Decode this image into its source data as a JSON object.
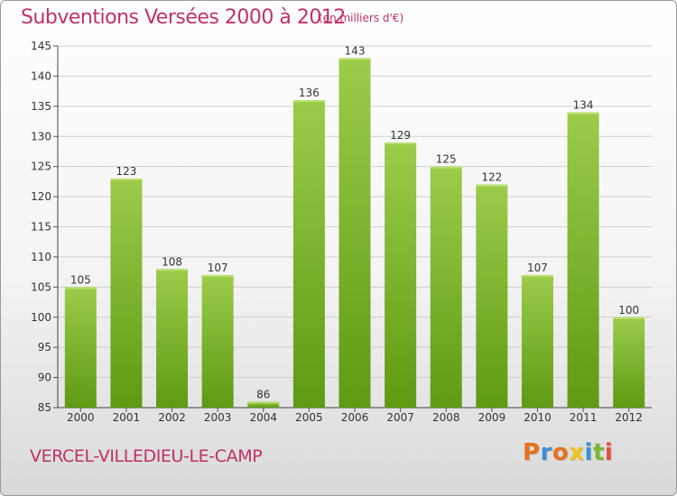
{
  "header": {
    "title": "Subventions Versées 2000 à 2012",
    "unit": "(en milliers d'€)"
  },
  "footer": {
    "commune": "VERCEL-VILLEDIEU-LE-CAMP",
    "logo_text": "Proxiti"
  },
  "colors": {
    "title": "#c0306a",
    "bar_top": "#9ccc4a",
    "bar_bottom": "#5e9a12",
    "logo_letters": [
      "#e8711b",
      "#3a8fd6",
      "#e8711b",
      "#f0c419",
      "#3a8fd6",
      "#7ab82e",
      "#e84b3c"
    ]
  },
  "chart_data": {
    "type": "bar",
    "title": "Subventions Versées 2000 à 2012",
    "subtitle": "(en milliers d'€)",
    "xlabel": "",
    "ylabel": "",
    "categories": [
      "2000",
      "2001",
      "2002",
      "2003",
      "2004",
      "2005",
      "2006",
      "2007",
      "2008",
      "2009",
      "2010",
      "2011",
      "2012"
    ],
    "values": [
      105,
      123,
      108,
      107,
      86,
      136,
      143,
      129,
      125,
      122,
      107,
      134,
      100
    ],
    "ylim": [
      85,
      145
    ],
    "yticks": [
      85,
      90,
      95,
      100,
      105,
      110,
      115,
      120,
      125,
      130,
      135,
      140,
      145
    ],
    "grid": true
  }
}
